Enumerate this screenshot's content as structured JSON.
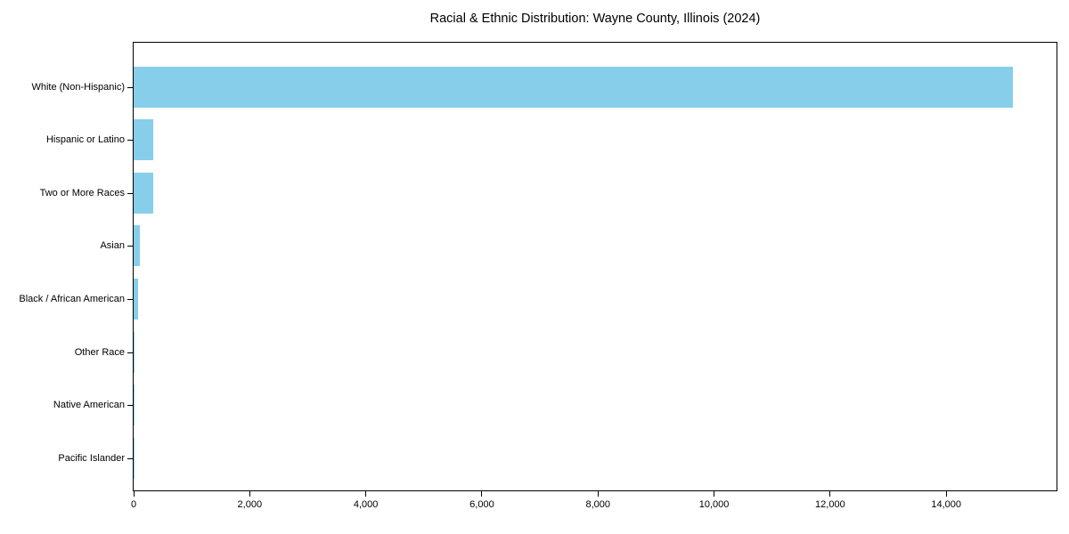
{
  "chart_data": {
    "type": "bar",
    "orientation": "horizontal",
    "title": "Racial & Ethnic Distribution: Wayne County, Illinois (2024)",
    "categories": [
      "White (Non-Hispanic)",
      "Hispanic or Latino",
      "Two or More Races",
      "Asian",
      "Black / African American",
      "Other Race",
      "Native American",
      "Pacific Islander"
    ],
    "values": [
      15150,
      330,
      345,
      110,
      75,
      15,
      10,
      5
    ],
    "xlabel": "",
    "ylabel": "",
    "xlim": [
      0,
      15900
    ],
    "xticks": [
      0,
      2000,
      4000,
      6000,
      8000,
      10000,
      12000,
      14000
    ],
    "xtick_labels": [
      "0",
      "2,000",
      "4,000",
      "6,000",
      "8,000",
      "10,000",
      "12,000",
      "14,000"
    ],
    "grid": false,
    "legend": null,
    "bar_color": "#87CEEB",
    "axis_color": "#000000",
    "background_color": "#ffffff"
  }
}
